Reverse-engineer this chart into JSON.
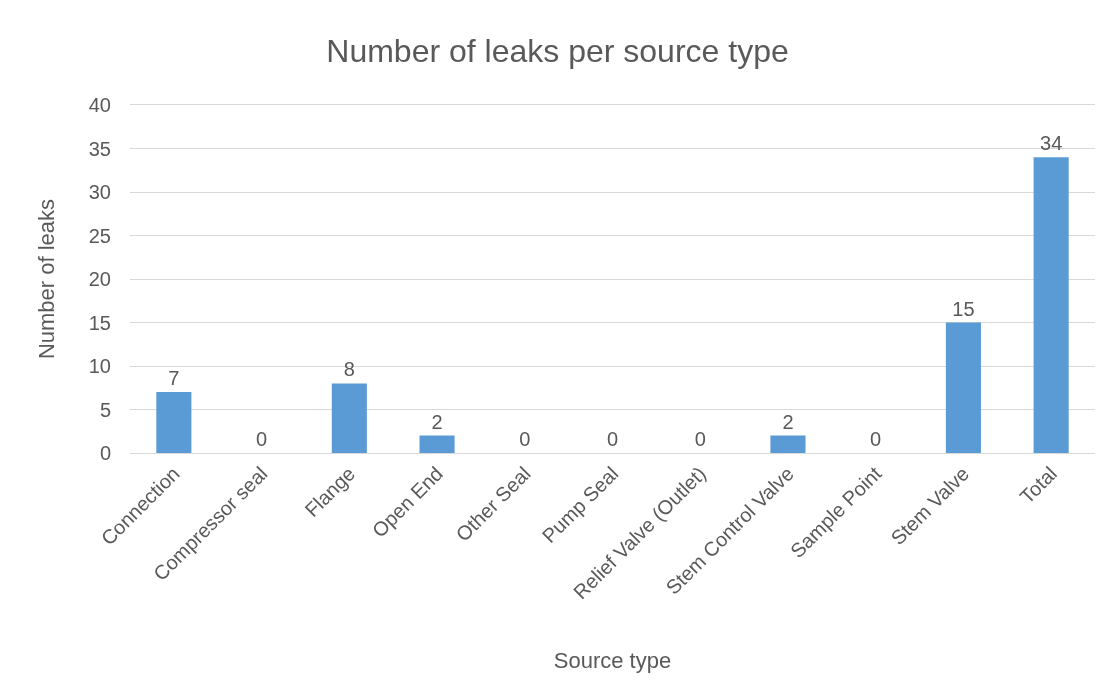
{
  "chart_data": {
    "type": "bar",
    "title": "Number of leaks per source type",
    "xlabel": "Source type",
    "ylabel": "Number of leaks",
    "categories": [
      "Connection",
      "Compressor seal",
      "Flange",
      "Open End",
      "Other Seal",
      "Pump Seal",
      "Relief Valve (Outlet)",
      "Stem Control Valve",
      "Sample Point",
      "Stem Valve",
      "Total"
    ],
    "values": [
      7,
      0,
      8,
      2,
      0,
      0,
      0,
      2,
      0,
      15,
      34
    ],
    "color": "#5b9bd5",
    "ylim": [
      0,
      40
    ],
    "yticks": [
      0,
      5,
      10,
      15,
      20,
      25,
      30,
      35,
      40
    ],
    "grid": "y",
    "data_labels": true
  }
}
